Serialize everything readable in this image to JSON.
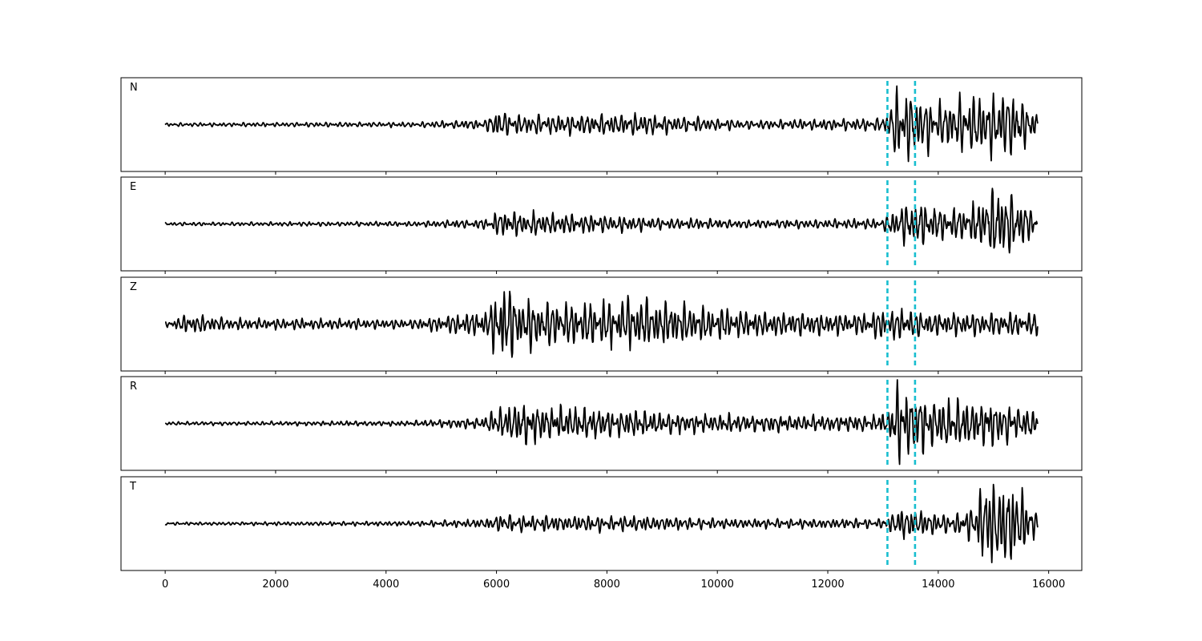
{
  "chart_data": {
    "type": "line",
    "layout": "stacked-panels",
    "shared_x_axis": true,
    "xlim": [
      -800,
      16600
    ],
    "x_ticks": [
      0,
      2000,
      4000,
      6000,
      8000,
      10000,
      12000,
      14000,
      16000
    ],
    "x_tick_labels": [
      "0",
      "2000",
      "4000",
      "6000",
      "8000",
      "10000",
      "12000",
      "14000",
      "16000"
    ],
    "y_axis_visible": false,
    "grid": false,
    "line_color": "#000000",
    "marker_color": "#17becf",
    "markers": [
      {
        "x": 13080,
        "style": "dashed"
      },
      {
        "x": 13580,
        "style": "dashed"
      }
    ],
    "signal_x_range": [
      0,
      15800
    ],
    "panels": [
      {
        "label": "N",
        "ylim": [
          -1.2,
          1.2
        ],
        "envelope": [
          [
            0,
            0.04
          ],
          [
            4500,
            0.06
          ],
          [
            5800,
            0.12
          ],
          [
            6000,
            0.35
          ],
          [
            6400,
            0.22
          ],
          [
            8600,
            0.25
          ],
          [
            9000,
            0.22
          ],
          [
            10500,
            0.1
          ],
          [
            12900,
            0.15
          ],
          [
            13100,
            0.25
          ],
          [
            13200,
            0.9
          ],
          [
            13600,
            0.7
          ],
          [
            14000,
            0.55
          ],
          [
            14800,
            0.7
          ],
          [
            15300,
            0.8
          ],
          [
            15800,
            0.25
          ]
        ]
      },
      {
        "label": "E",
        "ylim": [
          -1.25,
          1.25
        ],
        "envelope": [
          [
            0,
            0.04
          ],
          [
            4500,
            0.06
          ],
          [
            5800,
            0.12
          ],
          [
            6000,
            0.3
          ],
          [
            6300,
            0.3
          ],
          [
            8600,
            0.18
          ],
          [
            9000,
            0.15
          ],
          [
            10500,
            0.1
          ],
          [
            12900,
            0.12
          ],
          [
            13100,
            0.2
          ],
          [
            13250,
            0.5
          ],
          [
            13600,
            0.55
          ],
          [
            14000,
            0.4
          ],
          [
            14600,
            0.45
          ],
          [
            15100,
            1.0
          ],
          [
            15500,
            0.6
          ],
          [
            15800,
            0.2
          ]
        ]
      },
      {
        "label": "Z",
        "ylim": [
          -1.1,
          1.1
        ],
        "envelope": [
          [
            0,
            0.05
          ],
          [
            400,
            0.2
          ],
          [
            600,
            0.2
          ],
          [
            1200,
            0.12
          ],
          [
            4500,
            0.1
          ],
          [
            5800,
            0.3
          ],
          [
            6100,
            0.9
          ],
          [
            6400,
            0.6
          ],
          [
            7000,
            0.45
          ],
          [
            8600,
            0.55
          ],
          [
            9000,
            0.5
          ],
          [
            10500,
            0.28
          ],
          [
            12500,
            0.22
          ],
          [
            13300,
            0.35
          ],
          [
            14000,
            0.25
          ],
          [
            15800,
            0.25
          ]
        ]
      },
      {
        "label": "R",
        "ylim": [
          -1.2,
          1.2
        ],
        "envelope": [
          [
            0,
            0.04
          ],
          [
            4500,
            0.06
          ],
          [
            5800,
            0.14
          ],
          [
            6000,
            0.4
          ],
          [
            6400,
            0.45
          ],
          [
            8600,
            0.3
          ],
          [
            9000,
            0.25
          ],
          [
            10500,
            0.2
          ],
          [
            12900,
            0.18
          ],
          [
            13100,
            0.3
          ],
          [
            13250,
            1.0
          ],
          [
            13600,
            0.7
          ],
          [
            14000,
            0.6
          ],
          [
            14600,
            0.55
          ],
          [
            15000,
            0.5
          ],
          [
            15800,
            0.3
          ]
        ]
      },
      {
        "label": "T",
        "ylim": [
          -1.1,
          1.1
        ],
        "envelope": [
          [
            0,
            0.03
          ],
          [
            4500,
            0.05
          ],
          [
            5800,
            0.1
          ],
          [
            6000,
            0.18
          ],
          [
            6400,
            0.18
          ],
          [
            8600,
            0.16
          ],
          [
            9000,
            0.14
          ],
          [
            10500,
            0.1
          ],
          [
            12900,
            0.1
          ],
          [
            13100,
            0.15
          ],
          [
            13300,
            0.35
          ],
          [
            13600,
            0.3
          ],
          [
            14200,
            0.2
          ],
          [
            14600,
            0.35
          ],
          [
            14900,
            0.95
          ],
          [
            15500,
            0.75
          ],
          [
            15800,
            0.2
          ]
        ]
      }
    ]
  }
}
